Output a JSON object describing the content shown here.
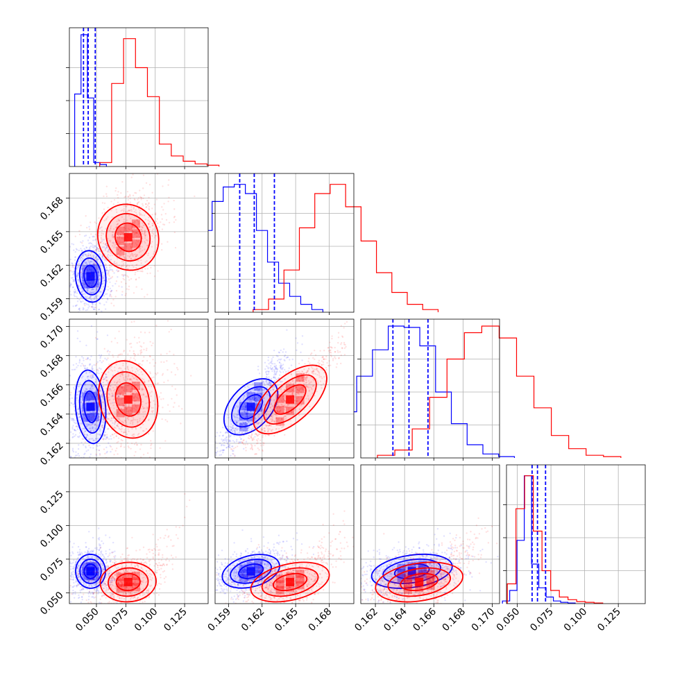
{
  "chart_data": {
    "type": "corner",
    "series": [
      {
        "color": "#0000ff",
        "center": [
          0.045,
          0.161,
          0.1645,
          0.066
        ],
        "sd": [
          0.006,
          0.0011,
          0.0012,
          0.006
        ],
        "quantiles_marked": true
      },
      {
        "color": "#ff0000",
        "center": [
          0.077,
          0.1645,
          0.165,
          0.058
        ],
        "sd": [
          0.011,
          0.0015,
          0.0013,
          0.007
        ]
      }
    ],
    "params": [
      {
        "range": [
          0.027,
          0.145
        ],
        "ticks": [
          "0.050",
          "0.075",
          "0.100",
          "0.125"
        ],
        "tick_values": [
          0.05,
          0.075,
          0.1,
          0.125
        ]
      },
      {
        "range": [
          0.1578,
          0.1702
        ],
        "ticks": [
          "0.159",
          "0.162",
          "0.165",
          "0.168"
        ],
        "tick_values": [
          0.159,
          0.162,
          0.165,
          0.168
        ]
      },
      {
        "range": [
          0.161,
          0.1705
        ],
        "ticks": [
          "0.162",
          "0.164",
          "0.166",
          "0.168",
          "0.170"
        ],
        "tick_values": [
          0.162,
          0.164,
          0.166,
          0.168,
          0.17
        ]
      },
      {
        "range": [
          0.042,
          0.145
        ],
        "ticks": [
          "0.050",
          "0.075",
          "0.100",
          "0.125"
        ],
        "tick_values": [
          0.05,
          0.075,
          0.1,
          0.125
        ]
      }
    ],
    "histograms": [
      {
        "blue": [
          0.55,
          1.0,
          0.52,
          0.03,
          0.015
        ],
        "red": [
          0.03,
          0.63,
          0.97,
          0.75,
          0.53,
          0.17,
          0.08,
          0.04,
          0.02,
          0.01
        ],
        "blue_quantiles": [
          0.039,
          0.043,
          0.049
        ]
      },
      {
        "blue": [
          0.12,
          0.35,
          0.62,
          0.84,
          0.95,
          0.97,
          0.9,
          0.62,
          0.38,
          0.22,
          0.12,
          0.06,
          0.02
        ],
        "red": [
          0.02,
          0.1,
          0.32,
          0.64,
          0.9,
          0.97,
          0.8,
          0.54,
          0.3,
          0.15,
          0.06,
          0.02
        ],
        "blue_quantiles": [
          0.16,
          0.1613,
          0.1631
        ]
      },
      {
        "blue": [
          0.04,
          0.17,
          0.35,
          0.62,
          0.82,
          1.0,
          0.99,
          0.85,
          0.5,
          0.26,
          0.1,
          0.03,
          0.01
        ],
        "red": [
          0.02,
          0.06,
          0.22,
          0.46,
          0.75,
          0.95,
          1.0,
          0.91,
          0.62,
          0.38,
          0.17,
          0.07,
          0.02,
          0.01
        ],
        "blue_quantiles": [
          0.1632,
          0.1643,
          0.1656
        ]
      },
      {
        "blue": [
          0.02,
          0.1,
          0.48,
          0.97,
          0.3,
          0.12,
          0.05,
          0.02,
          0.01,
          0.005
        ],
        "red": [
          0.15,
          0.72,
          0.97,
          0.55,
          0.25,
          0.1,
          0.05,
          0.03,
          0.015,
          0.01,
          0.005
        ],
        "blue_quantiles": [
          0.061,
          0.065,
          0.071
        ]
      }
    ],
    "grid": true
  }
}
